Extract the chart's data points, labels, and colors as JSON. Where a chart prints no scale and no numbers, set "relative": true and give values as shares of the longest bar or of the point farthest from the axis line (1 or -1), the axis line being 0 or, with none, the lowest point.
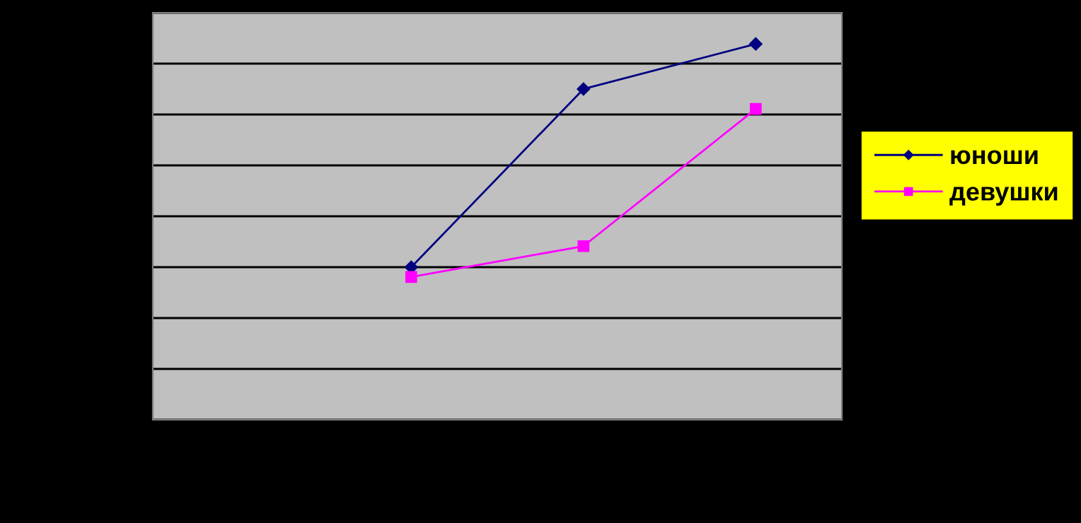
{
  "chart_data": {
    "type": "line",
    "relative": true,
    "categories": [
      null,
      null,
      null,
      null
    ],
    "series": [
      {
        "name": "юноши",
        "color": "#000080",
        "marker": "diamond",
        "values": [
          null,
          0.406,
          0.88,
          1
        ]
      },
      {
        "name": "девушки",
        "color": "#ff00ff",
        "marker": "square",
        "values": [
          null,
          0.38,
          0.462,
          0.827
        ]
      }
    ],
    "grid": "y",
    "legend": "right",
    "line_style": "solid"
  }
}
